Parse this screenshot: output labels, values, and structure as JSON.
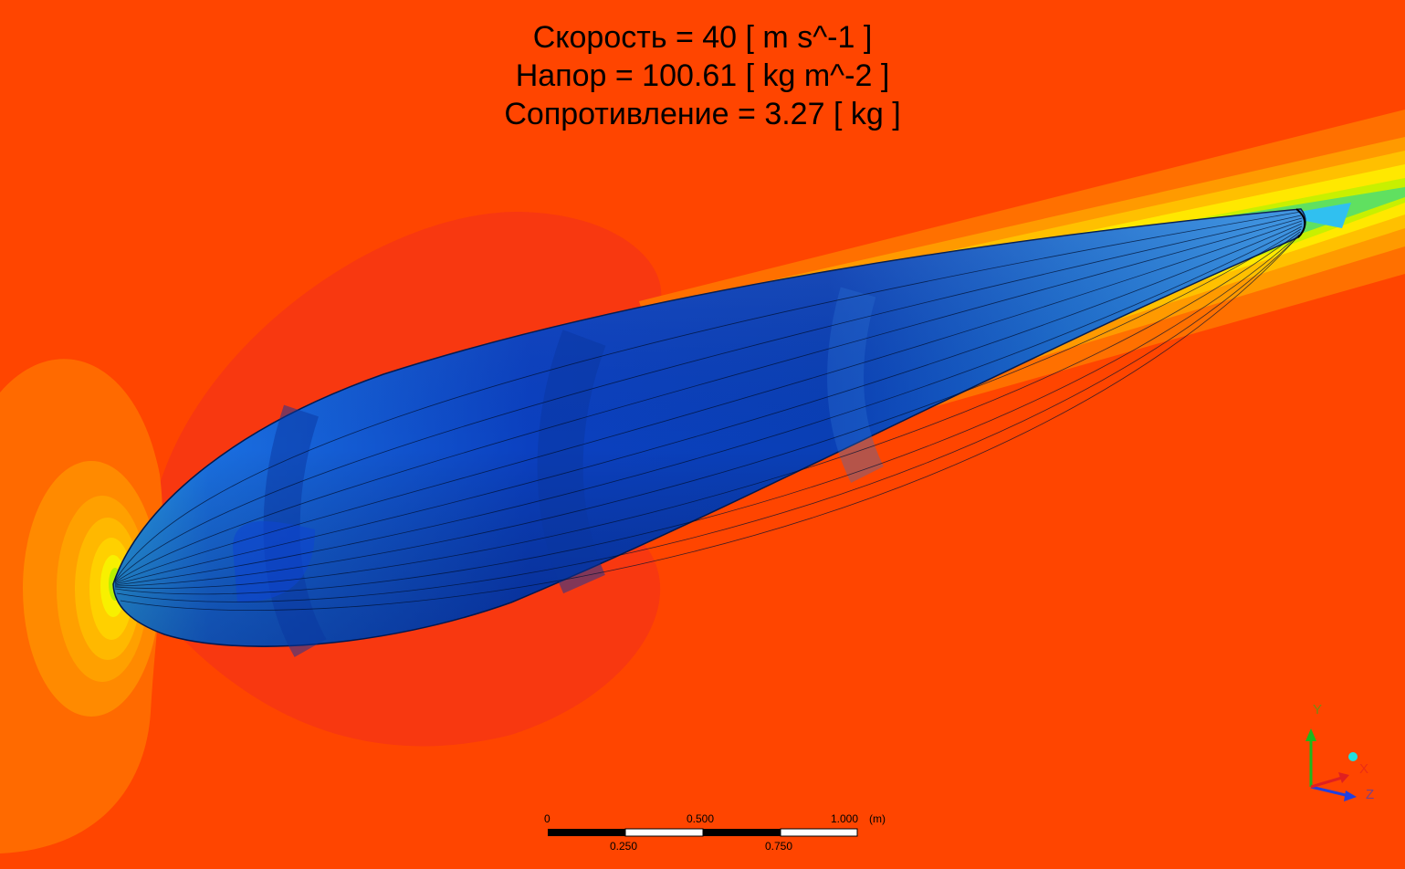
{
  "results": {
    "velocity_line": "Скорость = 40 [ m s^-1 ]",
    "pressure_line": "Напор = 100.61 [ kg m^-2 ]",
    "drag_line": "Сопротивление = 3.27 [ kg ]"
  },
  "scale_bar": {
    "top_labels": [
      "0",
      "0.500",
      "1.000"
    ],
    "unit": "(m)",
    "bottom_labels": [
      "0.250",
      "0.750"
    ]
  },
  "axes": {
    "y_label": "Y",
    "x_label": "X",
    "z_label": "Z",
    "y_color": "#1db81d",
    "x_color": "#e02020",
    "z_color": "#2040e0"
  },
  "colors": {
    "far_field": "#ff4500",
    "low_pressure_region": "#f83810",
    "stagnation_outer": "#ff7a00",
    "hull_dark": "#0a3aa8",
    "hull_light": "#2a8ae0"
  }
}
